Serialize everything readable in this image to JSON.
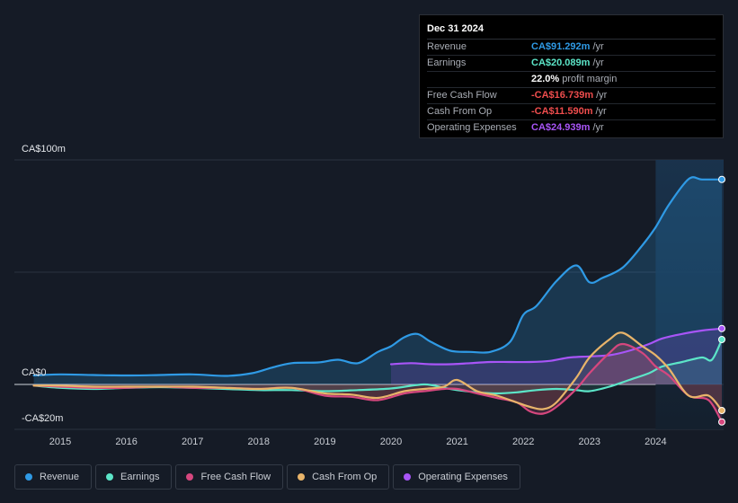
{
  "tooltip": {
    "date": "Dec 31 2024",
    "rows": [
      {
        "label": "Revenue",
        "value": "CA$91.292m",
        "unit": "/yr",
        "color": "#2f9ae5"
      },
      {
        "label": "Earnings",
        "value": "CA$20.089m",
        "unit": "/yr",
        "color": "#5ce5c8"
      },
      {
        "label": "",
        "value": "22.0%",
        "unit": "profit margin",
        "color": "#ffffff"
      },
      {
        "label": "Free Cash Flow",
        "value": "-CA$16.739m",
        "unit": "/yr",
        "color": "#ef4d4d"
      },
      {
        "label": "Cash From Op",
        "value": "-CA$11.590m",
        "unit": "/yr",
        "color": "#ef4d4d"
      },
      {
        "label": "Operating Expenses",
        "value": "CA$24.939m",
        "unit": "/yr",
        "color": "#a855f7"
      }
    ]
  },
  "legend": [
    {
      "label": "Revenue",
      "color": "#2f9ae5"
    },
    {
      "label": "Earnings",
      "color": "#5ce5c8"
    },
    {
      "label": "Free Cash Flow",
      "color": "#d6477e"
    },
    {
      "label": "Cash From Op",
      "color": "#e8b46a"
    },
    {
      "label": "Operating Expenses",
      "color": "#a855f7"
    }
  ],
  "chart_data": {
    "type": "line",
    "title": "",
    "xlabel": "",
    "ylabel": "",
    "y_tick_labels": [
      "CA$100m",
      "CA$0",
      "-CA$20m"
    ],
    "ylim": [
      -20,
      100
    ],
    "xlim": [
      2014.6,
      2025.0
    ],
    "x_ticks": [
      2015,
      2016,
      2017,
      2018,
      2019,
      2020,
      2021,
      2022,
      2023,
      2024
    ],
    "x_tick_labels": [
      "2015",
      "2016",
      "2017",
      "2018",
      "2019",
      "2020",
      "2021",
      "2022",
      "2023",
      "2024"
    ],
    "highlight_start": 2024.0,
    "series": [
      {
        "name": "Revenue",
        "color": "#2f9ae5",
        "x": [
          2014.6,
          2015.0,
          2015.5,
          2016.0,
          2016.5,
          2017.0,
          2017.5,
          2017.9,
          2018.2,
          2018.5,
          2018.9,
          2019.2,
          2019.5,
          2019.8,
          2020.0,
          2020.2,
          2020.4,
          2020.6,
          2020.9,
          2021.2,
          2021.5,
          2021.8,
          2022.0,
          2022.2,
          2022.5,
          2022.8,
          2023.0,
          2023.2,
          2023.5,
          2023.8,
          2024.0,
          2024.2,
          2024.5,
          2024.7,
          2025.0
        ],
        "values": [
          4,
          4.5,
          4.2,
          4,
          4.2,
          4.5,
          3.8,
          5,
          7.5,
          9.5,
          9.8,
          11,
          9.5,
          14.5,
          17,
          21,
          22.5,
          19,
          15,
          14.5,
          14.5,
          19,
          31,
          35,
          46,
          53,
          45.5,
          47.5,
          52,
          62,
          70,
          80,
          91.5,
          91.3,
          91.3
        ]
      },
      {
        "name": "Earnings",
        "color": "#5ce5c8",
        "x": [
          2014.6,
          2015.0,
          2015.5,
          2016.0,
          2016.5,
          2017.0,
          2017.5,
          2018.0,
          2018.5,
          2019.0,
          2019.5,
          2020.0,
          2020.5,
          2020.8,
          2021.0,
          2021.3,
          2021.6,
          2021.9,
          2022.2,
          2022.5,
          2022.8,
          2023.0,
          2023.3,
          2023.6,
          2023.9,
          2024.1,
          2024.4,
          2024.7,
          2024.85,
          2025.0
        ],
        "values": [
          -0.5,
          -1.5,
          -2,
          -1.5,
          -1.2,
          -1.5,
          -2,
          -2.5,
          -2.5,
          -3,
          -2.5,
          -1.8,
          0,
          -1.5,
          -2.5,
          -3.5,
          -4,
          -3.5,
          -2.5,
          -2,
          -2.5,
          -3,
          -1,
          2,
          5,
          8,
          10,
          12,
          11,
          20
        ]
      },
      {
        "name": "Free Cash Flow",
        "color": "#d6477e",
        "x": [
          2014.6,
          2015.0,
          2015.5,
          2016.0,
          2016.5,
          2017.0,
          2017.5,
          2018.0,
          2018.5,
          2019.0,
          2019.4,
          2019.8,
          2020.2,
          2020.5,
          2020.8,
          2021.0,
          2021.3,
          2021.6,
          2021.9,
          2022.1,
          2022.3,
          2022.5,
          2022.8,
          2023.0,
          2023.3,
          2023.5,
          2023.8,
          2024.0,
          2024.2,
          2024.5,
          2024.8,
          2025.0
        ],
        "values": [
          -0.5,
          -1,
          -1.5,
          -1.5,
          -1,
          -1.5,
          -1.5,
          -2,
          -1.5,
          -5,
          -5.5,
          -7,
          -4,
          -3,
          -2,
          -2,
          -4,
          -6,
          -8,
          -12,
          -13,
          -10,
          -2,
          5,
          14,
          18,
          14,
          8,
          4,
          -5,
          -7,
          -16.7
        ]
      },
      {
        "name": "Cash From Op",
        "color": "#e8b46a",
        "x": [
          2014.6,
          2015.0,
          2015.5,
          2016.0,
          2016.5,
          2017.0,
          2017.5,
          2018.0,
          2018.5,
          2019.0,
          2019.4,
          2019.8,
          2020.2,
          2020.5,
          2020.8,
          2021.0,
          2021.3,
          2021.6,
          2021.9,
          2022.1,
          2022.3,
          2022.5,
          2022.8,
          2023.0,
          2023.3,
          2023.5,
          2023.8,
          2024.0,
          2024.2,
          2024.5,
          2024.8,
          2025.0
        ],
        "values": [
          -0.5,
          -0.5,
          -1,
          -1,
          -1,
          -1,
          -1.5,
          -2,
          -1.5,
          -4,
          -4.5,
          -6,
          -3,
          -2,
          -1,
          2,
          -3,
          -5,
          -8,
          -10,
          -11,
          -8,
          3,
          12,
          20,
          23,
          17,
          13,
          7,
          -5,
          -5,
          -11.6
        ]
      },
      {
        "name": "Operating Expenses",
        "color": "#a855f7",
        "x": [
          2020.0,
          2020.3,
          2020.6,
          2020.9,
          2021.2,
          2021.5,
          2021.8,
          2022.1,
          2022.4,
          2022.7,
          2023.0,
          2023.3,
          2023.6,
          2023.9,
          2024.1,
          2024.4,
          2024.7,
          2025.0
        ],
        "values": [
          9,
          9.5,
          9,
          9,
          9.5,
          10,
          10,
          10,
          10.5,
          12,
          12.5,
          13,
          15,
          18,
          20.5,
          22.5,
          24,
          24.9
        ]
      }
    ]
  }
}
